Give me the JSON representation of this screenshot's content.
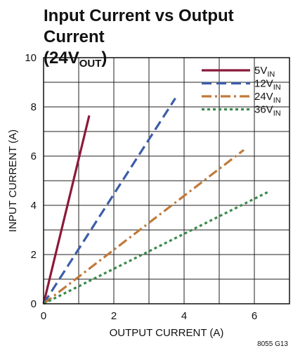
{
  "title": {
    "line1": "Input Current vs Output Current",
    "line2_prefix": "(24V",
    "line2_sub": "OUT",
    "line2_suffix": ")"
  },
  "footnote": "8055 G13",
  "chart_data": {
    "type": "line",
    "title": "Input Current vs Output Current (24VOUT)",
    "xlabel": "OUTPUT CURRENT (A)",
    "ylabel": "INPUT CURRENT (A)",
    "xlim": [
      0,
      7
    ],
    "ylim": [
      0,
      10
    ],
    "xticks": [
      0,
      2,
      4,
      6
    ],
    "yticks": [
      0,
      2,
      4,
      6,
      8,
      10
    ],
    "grid": true,
    "legend_position": "top-right",
    "series": [
      {
        "name": "5V",
        "name_sub": "IN",
        "color": "#8b1a3a",
        "dash": "solid",
        "x": [
          0,
          1.3
        ],
        "y": [
          0,
          7.65
        ]
      },
      {
        "name": "12V",
        "name_sub": "IN",
        "color": "#3d5da8",
        "dash": "dash",
        "x": [
          0,
          3.75
        ],
        "y": [
          0,
          8.35
        ]
      },
      {
        "name": "24V",
        "name_sub": "IN",
        "color": "#c07a3a",
        "dash": "dashdot",
        "x": [
          0,
          5.7
        ],
        "y": [
          0,
          6.25
        ]
      },
      {
        "name": "36V",
        "name_sub": "IN",
        "color": "#3a8a4a",
        "dash": "dot",
        "x": [
          0,
          6.4
        ],
        "y": [
          0,
          4.55
        ]
      }
    ]
  }
}
